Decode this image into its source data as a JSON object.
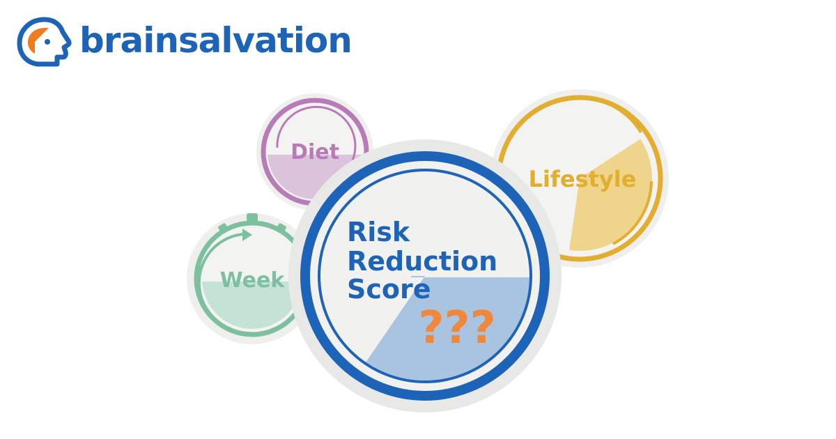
{
  "brand": {
    "name": "brainsalvation",
    "colors": {
      "blue": "#1d63b8",
      "orange": "#f07c1e"
    },
    "logo_icon": "head-profile-icon"
  },
  "circles": {
    "diet": {
      "label": "Diet",
      "color": "#b97bb8",
      "fill_color": "#dcc3dc"
    },
    "week": {
      "label": "Week",
      "color": "#7cc0a0",
      "fill_color": "#c5e3d4",
      "icon": "stopwatch-icon"
    },
    "lifestyle": {
      "label": "Lifestyle",
      "color": "#e3ae2f",
      "fill_color": "#efd48b"
    },
    "score": {
      "label_line1": "Risk",
      "label_line2": "Reduction",
      "label_line3": "Score",
      "value": "???",
      "color": "#1d63b8",
      "fill_color": "#a9c4e1",
      "value_color": "#f0873a"
    }
  }
}
